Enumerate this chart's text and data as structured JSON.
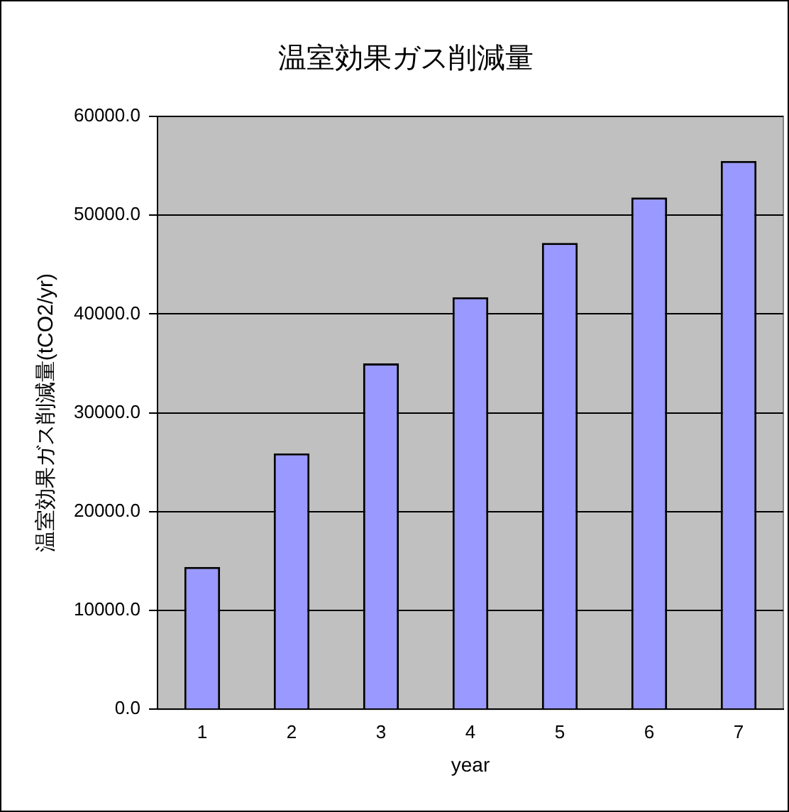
{
  "chart_data": {
    "type": "bar",
    "title": "温室効果ガス削減量",
    "xlabel": "year",
    "ylabel": "温室効果ガス削減量(tCO2/yr)",
    "categories": [
      "1",
      "2",
      "3",
      "4",
      "5",
      "6",
      "7"
    ],
    "values": [
      14400,
      25900,
      35000,
      41700,
      47200,
      51800,
      55500
    ],
    "color": "#9999ff",
    "ylim": [
      0,
      60000
    ],
    "yticks": [
      {
        "value": 0,
        "label": "0.0"
      },
      {
        "value": 10000,
        "label": "10000.0"
      },
      {
        "value": 20000,
        "label": "20000.0"
      },
      {
        "value": 30000,
        "label": "30000.0"
      },
      {
        "value": 40000,
        "label": "40000.0"
      },
      {
        "value": 50000,
        "label": "50000.0"
      },
      {
        "value": 60000,
        "label": "60000.0"
      }
    ],
    "grid": "y",
    "legend": false
  }
}
